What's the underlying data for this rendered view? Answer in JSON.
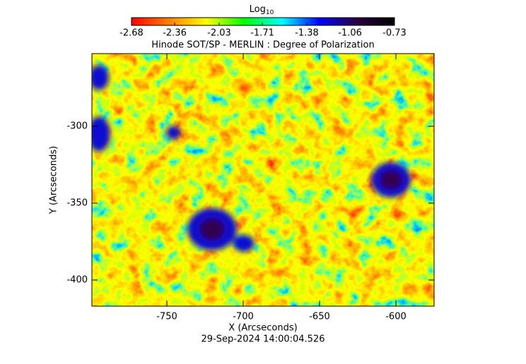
{
  "chart_data": {
    "type": "image",
    "title": "Hinode SOT/SP - MERLIN : Degree of Polarization",
    "x_label": "X (Arcseconds)",
    "y_label": "Y (Arcseconds)",
    "timestamp": "29-Sep-2024 14:00:04.526",
    "colorbar_label": {
      "base": "Log",
      "subscript": "10"
    },
    "colorbar_lim": [
      -2.68,
      -0.73
    ],
    "colorbar_ticks": [
      -2.68,
      -2.36,
      -2.03,
      -1.71,
      -1.38,
      -1.06,
      -0.73
    ],
    "colorscale": [
      "#ff0000",
      "#ff8000",
      "#ffff00",
      "#00ff00",
      "#00ffff",
      "#0000ff",
      "#2a0040",
      "#000000"
    ],
    "xlim": [
      -799.07,
      -575
    ],
    "xticks": [
      -750,
      -700,
      -650,
      -600
    ],
    "ylim": [
      -417,
      -252.75
    ],
    "yticks": [
      -300,
      -350,
      -400
    ]
  }
}
